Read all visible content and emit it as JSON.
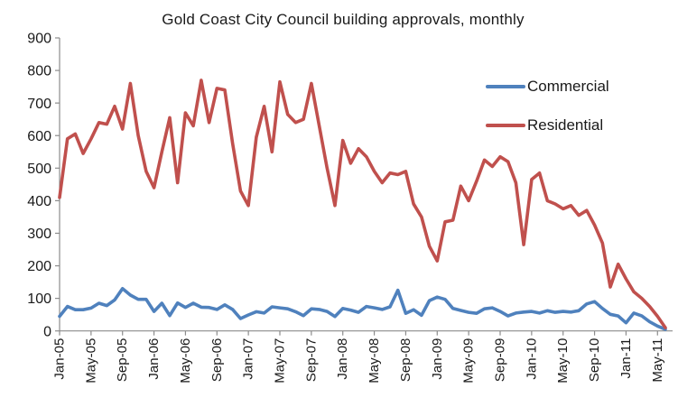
{
  "chart": {
    "title": "Gold Coast City Council building approvals, monthly",
    "colors": {
      "commercial": "#4F81BD",
      "residential": "#C0504D",
      "axis": "#8C8C8C",
      "text": "#1a1a1a",
      "background": "#ffffff"
    }
  },
  "chart_data": {
    "type": "line",
    "title": "Gold Coast City Council building approvals, monthly",
    "xlabel": "",
    "ylabel": "",
    "ylim": [
      0,
      900
    ],
    "y_ticks": [
      0,
      100,
      200,
      300,
      400,
      500,
      600,
      700,
      800,
      900
    ],
    "grid": "off",
    "legend_position": "upper-right-inside",
    "x_tick_labels": [
      "Jan-05",
      "May-05",
      "Sep-05",
      "Jan-06",
      "May-06",
      "Sep-06",
      "Jan-07",
      "May-07",
      "Sep-07",
      "Jan-08",
      "May-08",
      "Sep-08",
      "Jan-09",
      "May-09",
      "Sep-09",
      "Jan-10",
      "May-10",
      "Sep-10",
      "Jan-11",
      "May-11"
    ],
    "x_tick_every": 4,
    "categories": [
      "Jan-05",
      "Feb-05",
      "Mar-05",
      "Apr-05",
      "May-05",
      "Jun-05",
      "Jul-05",
      "Aug-05",
      "Sep-05",
      "Oct-05",
      "Nov-05",
      "Dec-05",
      "Jan-06",
      "Feb-06",
      "Mar-06",
      "Apr-06",
      "May-06",
      "Jun-06",
      "Jul-06",
      "Aug-06",
      "Sep-06",
      "Oct-06",
      "Nov-06",
      "Dec-06",
      "Jan-07",
      "Feb-07",
      "Mar-07",
      "Apr-07",
      "May-07",
      "Jun-07",
      "Jul-07",
      "Aug-07",
      "Sep-07",
      "Oct-07",
      "Nov-07",
      "Dec-07",
      "Jan-08",
      "Feb-08",
      "Mar-08",
      "Apr-08",
      "May-08",
      "Jun-08",
      "Jul-08",
      "Aug-08",
      "Sep-08",
      "Oct-08",
      "Nov-08",
      "Dec-08",
      "Jan-09",
      "Feb-09",
      "Mar-09",
      "Apr-09",
      "May-09",
      "Jun-09",
      "Jul-09",
      "Aug-09",
      "Sep-09",
      "Oct-09",
      "Nov-09",
      "Dec-09",
      "Jan-10",
      "Feb-10",
      "Mar-10",
      "Apr-10",
      "May-10",
      "Jun-10",
      "Jul-10",
      "Aug-10",
      "Sep-10",
      "Oct-10",
      "Nov-10",
      "Dec-10",
      "Jan-11",
      "Feb-11",
      "Mar-11",
      "Apr-11",
      "May-11",
      "Jun-11"
    ],
    "series": [
      {
        "name": "Commercial",
        "color": "#4F81BD",
        "values": [
          45,
          75,
          65,
          65,
          70,
          85,
          78,
          95,
          130,
          110,
          97,
          97,
          60,
          85,
          47,
          86,
          72,
          85,
          73,
          72,
          66,
          80,
          66,
          38,
          49,
          59,
          55,
          74,
          71,
          68,
          59,
          47,
          68,
          66,
          60,
          44,
          69,
          64,
          57,
          75,
          71,
          66,
          74,
          125,
          54,
          65,
          48,
          93,
          104,
          97,
          69,
          63,
          57,
          54,
          68,
          71,
          60,
          46,
          55,
          58,
          60,
          55,
          62,
          57,
          60,
          58,
          62,
          83,
          90,
          69,
          51,
          46,
          25,
          55,
          46,
          28,
          15,
          5
        ]
      },
      {
        "name": "Residential",
        "color": "#C0504D",
        "values": [
          410,
          590,
          605,
          545,
          590,
          640,
          635,
          690,
          620,
          760,
          600,
          490,
          440,
          550,
          655,
          455,
          670,
          630,
          770,
          640,
          745,
          740,
          575,
          430,
          385,
          595,
          690,
          550,
          765,
          665,
          640,
          650,
          760,
          630,
          500,
          385,
          585,
          515,
          560,
          535,
          490,
          455,
          485,
          480,
          490,
          390,
          350,
          260,
          215,
          335,
          340,
          445,
          400,
          460,
          525,
          505,
          535,
          520,
          455,
          265,
          465,
          485,
          400,
          390,
          375,
          385,
          355,
          370,
          325,
          270,
          135,
          205,
          160,
          120,
          100,
          75,
          45,
          10
        ]
      }
    ]
  }
}
